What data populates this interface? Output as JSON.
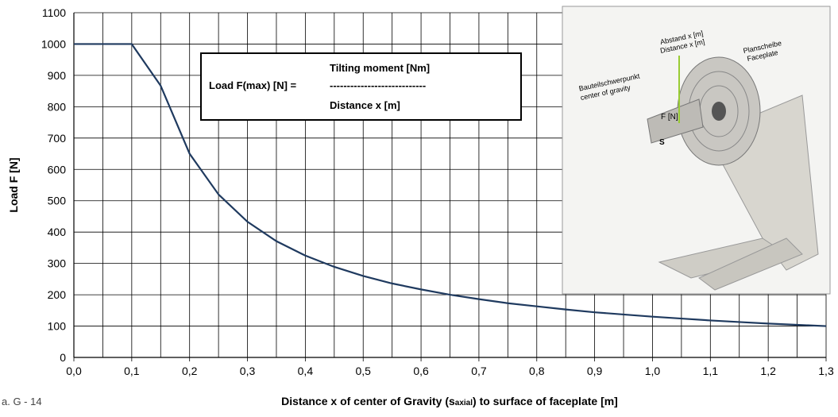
{
  "chart_data": {
    "type": "line",
    "figure_label": "a. G - 14",
    "y_label": "Load F [N]",
    "x_label": {
      "before": "Distance x of center of Gravity (s",
      "sub": "axial",
      "after": ") to surface of faceplate [m]"
    },
    "formula": {
      "lhs": "Load F(max) [N] =",
      "numerator": "Tilting moment [Nm]",
      "bar": "----------------------------",
      "denominator": "Distance x [m]"
    },
    "illustration": {
      "distance_de": "Abstand x [m]",
      "distance_en": "Distance x [m]",
      "faceplate_de": "Planscheibe",
      "faceplate_en": "Faceplate",
      "cog_de": "Bauteilschwerpunkt",
      "cog_en": "center of gravity",
      "force": "F [N]",
      "point": "S"
    },
    "x": [
      0,
      0.05,
      0.1,
      0.15,
      0.2,
      0.25,
      0.3,
      0.35,
      0.4,
      0.45,
      0.5,
      0.55,
      0.6,
      0.65,
      0.7,
      0.75,
      0.8,
      0.85,
      0.9,
      0.95,
      1.0,
      1.05,
      1.1,
      1.15,
      1.2,
      1.25,
      1.3
    ],
    "series": [
      {
        "name": "Load F",
        "color": "#1f3a5f",
        "values": [
          1000,
          1000,
          1000,
          867,
          650,
          520,
          433,
          371,
          325,
          289,
          260,
          236,
          217,
          200,
          186,
          173,
          163,
          153,
          144,
          137,
          130,
          124,
          118,
          113,
          108,
          104,
          100
        ]
      }
    ],
    "xlim": [
      0,
      1.3
    ],
    "ylim": [
      0,
      1100
    ],
    "xticks": [
      {
        "value": 0,
        "label": "0,0"
      },
      {
        "value": 0.1,
        "label": "0,1"
      },
      {
        "value": 0.2,
        "label": "0,2"
      },
      {
        "value": 0.3,
        "label": "0,3"
      },
      {
        "value": 0.4,
        "label": "0,4"
      },
      {
        "value": 0.5,
        "label": "0,5"
      },
      {
        "value": 0.6,
        "label": "0,6"
      },
      {
        "value": 0.7,
        "label": "0,7"
      },
      {
        "value": 0.8,
        "label": "0,8"
      },
      {
        "value": 0.9,
        "label": "0,9"
      },
      {
        "value": 1.0,
        "label": "1,0"
      },
      {
        "value": 1.1,
        "label": "1,1"
      },
      {
        "value": 1.2,
        "label": "1,2"
      },
      {
        "value": 1.3,
        "label": "1,3"
      }
    ],
    "xminorticks": [
      0.05,
      0.15,
      0.25,
      0.35,
      0.45,
      0.55,
      0.65,
      0.75,
      0.85,
      0.95,
      1.05,
      1.15,
      1.25
    ],
    "yticks": [
      0,
      100,
      200,
      300,
      400,
      500,
      600,
      700,
      800,
      900,
      1000,
      1100
    ],
    "grid": true
  }
}
